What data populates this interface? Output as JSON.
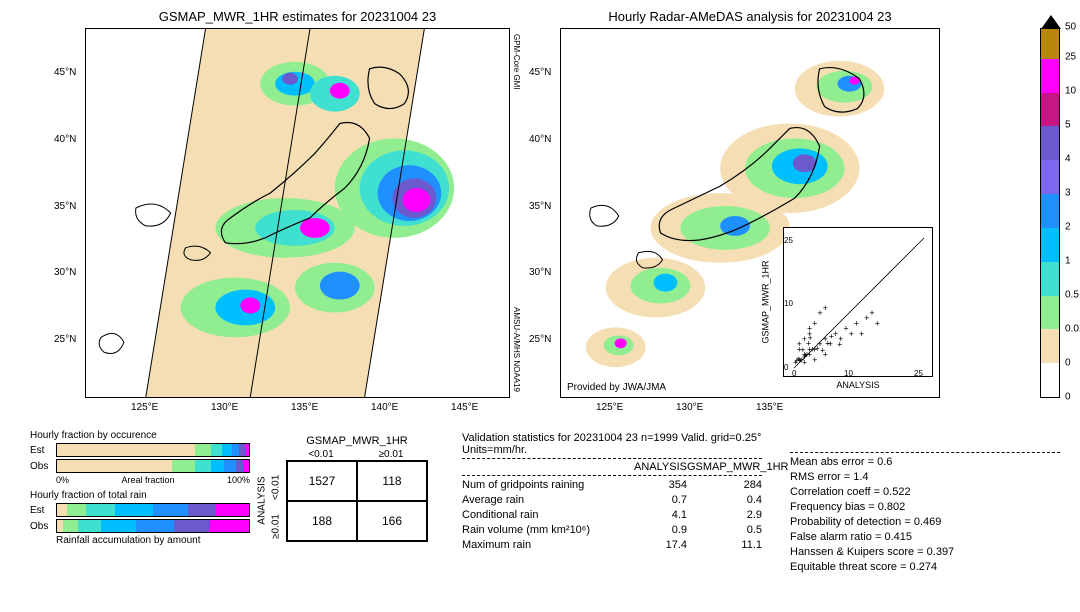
{
  "map_left": {
    "title": "GSMAP_MWR_1HR estimates for 20231004 23",
    "lat_ticks": [
      "25°N",
      "30°N",
      "35°N",
      "40°N",
      "45°N"
    ],
    "lon_ticks": [
      "125°E",
      "130°E",
      "135°E",
      "140°E",
      "145°E"
    ],
    "sat_labels": [
      "GPM-Core GMI",
      "AMSU-A/MHS NOAA19"
    ],
    "background": "#f5deb3"
  },
  "map_right": {
    "title": "Hourly Radar-AMeDAS analysis for 20231004 23",
    "lat_ticks": [
      "25°N",
      "30°N",
      "35°N",
      "40°N",
      "45°N"
    ],
    "lon_ticks": [
      "125°E",
      "130°E",
      "135°E"
    ],
    "provided": "Provided by JWA/JMA",
    "background": "#ffffff"
  },
  "colorbar": {
    "ticks": [
      "50",
      "25",
      "10",
      "5",
      "4",
      "3",
      "2",
      "1",
      "0.5",
      "0.01",
      "0"
    ],
    "colors": [
      "#b8860b",
      "#ff00ff",
      "#c71585",
      "#6a5acd",
      "#7b68ee",
      "#1e90ff",
      "#00bfff",
      "#40e0d0",
      "#90ee90",
      "#f5deb3",
      "#ffffff"
    ],
    "heights": [
      30,
      34,
      34,
      34,
      34,
      34,
      34,
      34,
      34,
      34,
      34
    ]
  },
  "inset": {
    "xlabel": "ANALYSIS",
    "ylabel": "GSMAP_MWR_1HR",
    "max": 25,
    "ticks": [
      0,
      5,
      10,
      15,
      20,
      25
    ],
    "points": [
      [
        1,
        1
      ],
      [
        2,
        1.5
      ],
      [
        1,
        3
      ],
      [
        3,
        2
      ],
      [
        4,
        3
      ],
      [
        2,
        5
      ],
      [
        5,
        4
      ],
      [
        3,
        6
      ],
      [
        6,
        5
      ],
      [
        7,
        4
      ],
      [
        8,
        6
      ],
      [
        4,
        8
      ],
      [
        9,
        5
      ],
      [
        10,
        7
      ],
      [
        5,
        10
      ],
      [
        12,
        8
      ],
      [
        6,
        11
      ],
      [
        14,
        9
      ],
      [
        11,
        6
      ],
      [
        3,
        3
      ],
      [
        2,
        2
      ],
      [
        1.5,
        1
      ],
      [
        2.5,
        2
      ],
      [
        3.5,
        3
      ],
      [
        0.5,
        0.8
      ],
      [
        0.8,
        1.2
      ],
      [
        1.2,
        0.9
      ],
      [
        2.2,
        1.8
      ],
      [
        4.5,
        3.2
      ],
      [
        5.5,
        2.8
      ],
      [
        6.5,
        4.1
      ],
      [
        7.2,
        5.5
      ],
      [
        8.8,
        3.9
      ],
      [
        3.1,
        5.2
      ],
      [
        2.8,
        4.1
      ],
      [
        1.7,
        2.9
      ],
      [
        0.3,
        0.5
      ],
      [
        15,
        10
      ],
      [
        13,
        6
      ],
      [
        16,
        8
      ],
      [
        2,
        0.5
      ],
      [
        4,
        1
      ],
      [
        6,
        2
      ],
      [
        1,
        4
      ],
      [
        3,
        7
      ]
    ]
  },
  "bars": {
    "title1": "Hourly fraction by occurence",
    "title2": "Hourly fraction of total rain",
    "footer": "Rainfall accumulation by amount",
    "axis_label": "Areal fraction",
    "est_label": "Est",
    "obs_label": "Obs",
    "axis_min": "0%",
    "axis_max": "100%",
    "occurrence_est": [
      72,
      8,
      6,
      5,
      4,
      3,
      2
    ],
    "occurrence_obs": [
      60,
      12,
      8,
      7,
      6,
      4,
      3
    ],
    "totalrain_est": [
      5,
      10,
      15,
      20,
      18,
      15,
      17
    ],
    "totalrain_obs": [
      3,
      8,
      12,
      18,
      20,
      18,
      21
    ],
    "colors": [
      "#f5deb3",
      "#90ee90",
      "#40e0d0",
      "#00bfff",
      "#1e90ff",
      "#6a5acd",
      "#ff00ff"
    ]
  },
  "contingency": {
    "title": "GSMAP_MWR_1HR",
    "col_labels": [
      "<0.01",
      "≥0.01"
    ],
    "row_labels": [
      "<0.01",
      "≥0.01"
    ],
    "ylabel": "ANALYSIS",
    "cells": [
      [
        "1527",
        "118"
      ],
      [
        "188",
        "166"
      ]
    ]
  },
  "stats": {
    "title": "Validation statistics for 20231004 23  n=1999 Valid. grid=0.25° Units=mm/hr.",
    "col_headers": [
      "",
      "ANALYSIS",
      "GSMAP_MWR_1HR"
    ],
    "rows": [
      {
        "label": "Num of gridpoints raining",
        "a": "354",
        "b": "284"
      },
      {
        "label": "Average rain",
        "a": "0.7",
        "b": "0.4"
      },
      {
        "label": "Conditional rain",
        "a": "4.1",
        "b": "2.9"
      },
      {
        "label": "Rain volume (mm km²10⁶)",
        "a": "0.9",
        "b": "0.5"
      },
      {
        "label": "Maximum rain",
        "a": "17.4",
        "b": "11.1"
      }
    ],
    "right": [
      "Mean abs error =    0.6",
      "RMS error =    1.4",
      "Correlation coeff =  0.522",
      "Frequency bias =  0.802",
      "Probability of detection =  0.469",
      "False alarm ratio =  0.415",
      "Hanssen & Kuipers score =  0.397",
      "Equitable threat score =  0.274"
    ]
  }
}
